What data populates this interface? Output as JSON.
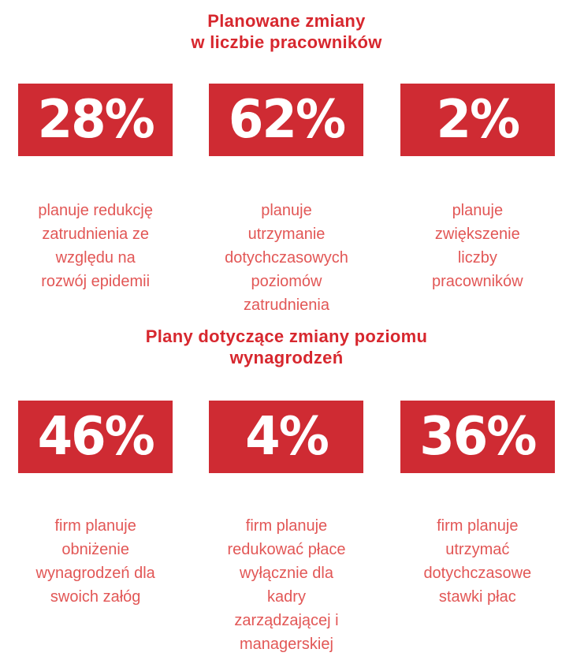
{
  "colors": {
    "box_red": "#cf2b33",
    "title_red": "#d7272e",
    "caption_red": "#e25756"
  },
  "sections": [
    {
      "title": "Planowane zmiany\nw liczbie pracowników",
      "stats": [
        {
          "value": "28%",
          "caption": "planuje redukcję\nzatrudnienia ze\nwzględu na\nrozwój epidemii"
        },
        {
          "value": "62%",
          "caption": "planuje\nutrzymanie\ndotychczasowych\npoziomów\nzatrudnienia"
        },
        {
          "value": "2%",
          "caption": "planuje\nzwiększenie\nliczby\npracowników"
        }
      ]
    },
    {
      "title": "Plany dotyczące zmiany poziomu\nwynagrodzeń",
      "stats": [
        {
          "value": "46%",
          "caption": "firm planuje\nobniżenie\nwynagrodzeń dla\nswoich załóg"
        },
        {
          "value": "4%",
          "caption": "firm planuje\nredukować płace\nwyłącznie dla\nkadry\nzarządzającej i\nmanagerskiej"
        },
        {
          "value": "36%",
          "caption": "firm planuje\nutrzymać\ndotychczasowe\nstawki płac"
        }
      ]
    }
  ],
  "chart_data": [
    {
      "type": "table",
      "title": "Planowane zmiany w liczbie pracowników",
      "categories": [
        "planuje redukcję zatrudnienia ze względu na rozwój epidemii",
        "planuje utrzymanie dotychczasowych poziomów zatrudnienia",
        "planuje zwiększenie liczby pracowników"
      ],
      "values": [
        28,
        62,
        2
      ],
      "unit": "%"
    },
    {
      "type": "table",
      "title": "Plany dotyczące zmiany poziomu wynagrodzeń",
      "categories": [
        "firm planuje obniżenie wynagrodzeń dla swoich załóg",
        "firm planuje redukować płace wyłącznie dla kadry zarządzającej i managerskiej",
        "firm planuje utrzymać dotychczasowe stawki płac"
      ],
      "values": [
        46,
        4,
        36
      ],
      "unit": "%"
    }
  ]
}
